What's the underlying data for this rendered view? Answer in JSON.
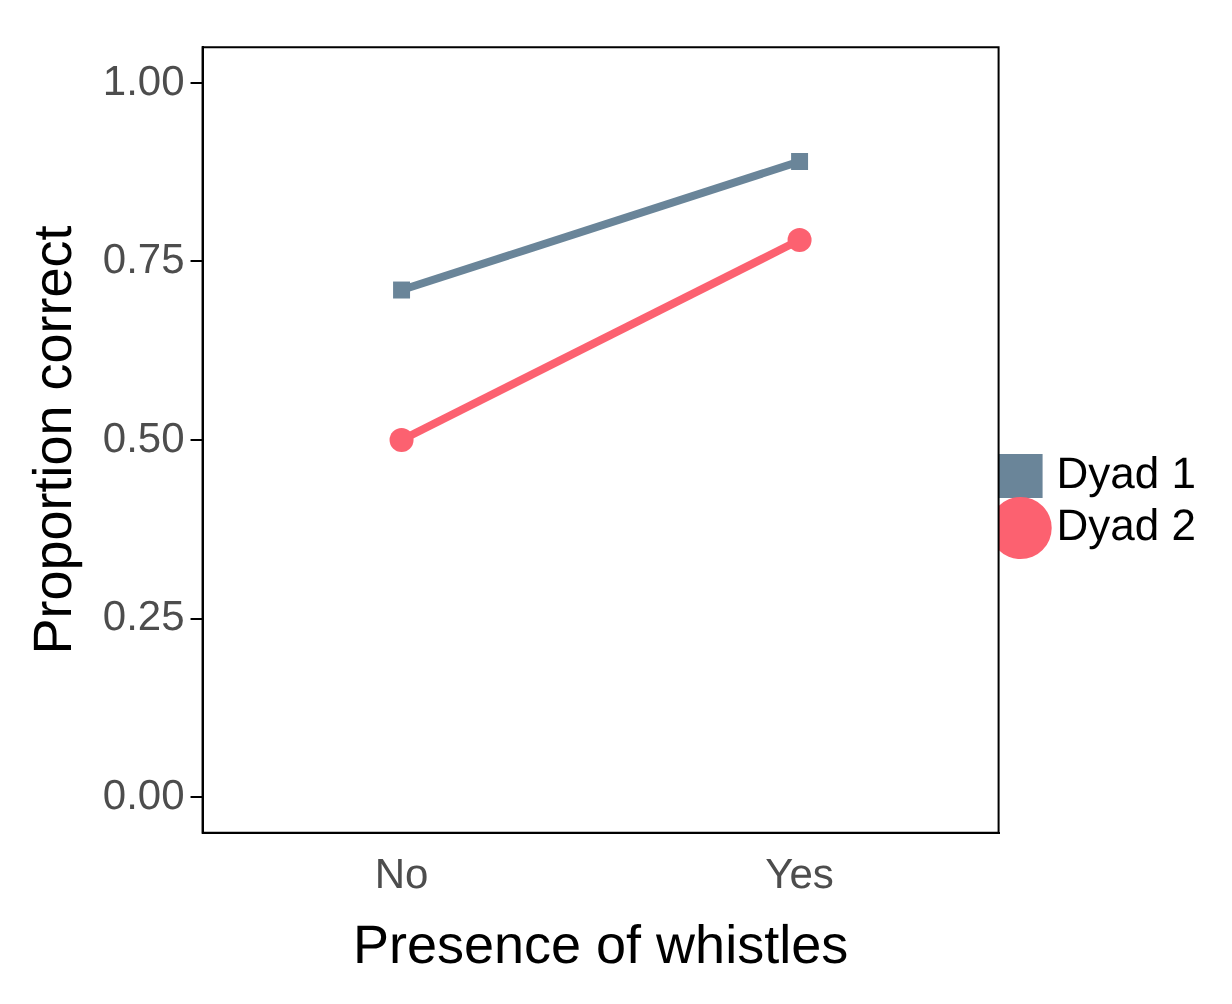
{
  "chart_data": {
    "type": "line",
    "xlabel": "Presence of whistles",
    "ylabel": "Proportion correct",
    "categories": [
      "No",
      "Yes"
    ],
    "series": [
      {
        "name": "Dyad 1",
        "color": "#6a8599",
        "marker": "square",
        "values": [
          0.71,
          0.89
        ]
      },
      {
        "name": "Dyad 2",
        "color": "#fc6170",
        "marker": "circle",
        "values": [
          0.5,
          0.78
        ]
      }
    ],
    "ylim": [
      -0.05,
      1.05
    ],
    "yticks": [
      {
        "value": 0,
        "label": "0.00"
      },
      {
        "value": 0.25,
        "label": "0.25"
      },
      {
        "value": 0.5,
        "label": "0.50"
      },
      {
        "value": 0.75,
        "label": "0.75"
      },
      {
        "value": 1,
        "label": "1.00"
      }
    ],
    "grid": false,
    "legend": "right",
    "line_style": "solid"
  }
}
